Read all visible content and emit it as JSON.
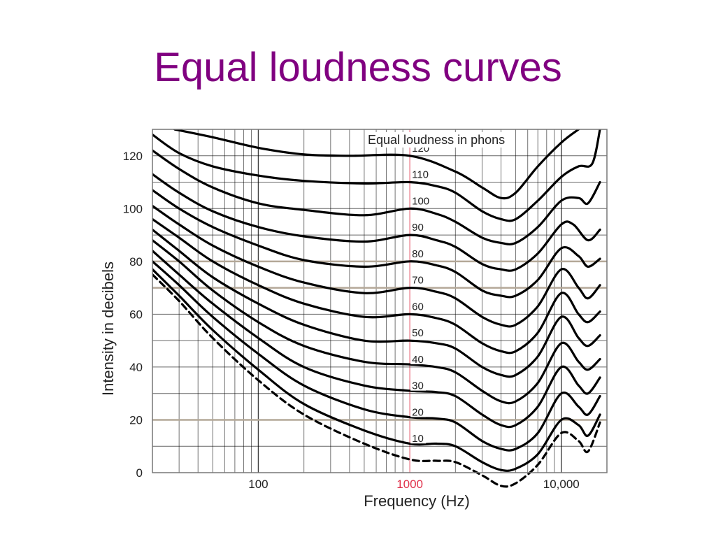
{
  "slide": {
    "title": "Equal loudness curves"
  },
  "colors": {
    "title": "#800080",
    "curve": "#000000",
    "grid": "#000000",
    "highlight_grid": "#b4a898",
    "highlight_tick": "#e0304a"
  },
  "chart_data": {
    "type": "line",
    "title": "",
    "legend_title": "Equal loudness in phons",
    "xlabel": "Frequency (Hz)",
    "ylabel": "Intensity in decibels",
    "x_scale": "log",
    "xlim": [
      20,
      20000
    ],
    "ylim": [
      0,
      130
    ],
    "x_tick_labels": [
      {
        "value": 100,
        "label": "100",
        "highlight": false
      },
      {
        "value": 1000,
        "label": "1000",
        "highlight": true
      },
      {
        "value": 10000,
        "label": "10,000",
        "highlight": false
      }
    ],
    "y_ticks": [
      0,
      20,
      40,
      60,
      80,
      100,
      120
    ],
    "highlight_y_lines": [
      20,
      70,
      80
    ],
    "grid": true,
    "series": [
      {
        "label": "120",
        "points": [
          [
            28,
            130
          ],
          [
            50,
            127
          ],
          [
            100,
            123
          ],
          [
            200,
            120.5
          ],
          [
            400,
            120
          ],
          [
            1000,
            120
          ],
          [
            2000,
            114
          ],
          [
            3000,
            108
          ],
          [
            4000,
            104
          ],
          [
            5000,
            106
          ],
          [
            7000,
            116
          ],
          [
            10000,
            125
          ],
          [
            13000,
            130
          ]
        ]
      },
      {
        "label": "110",
        "points": [
          [
            20,
            128
          ],
          [
            30,
            121
          ],
          [
            50,
            116
          ],
          [
            100,
            112.5
          ],
          [
            200,
            110.5
          ],
          [
            500,
            109.5
          ],
          [
            1000,
            110
          ],
          [
            1500,
            108.5
          ],
          [
            2000,
            106
          ],
          [
            3000,
            99
          ],
          [
            4000,
            96
          ],
          [
            5000,
            96
          ],
          [
            7000,
            103
          ],
          [
            10000,
            112
          ],
          [
            13000,
            116
          ],
          [
            16000,
            117
          ],
          [
            18000,
            130
          ]
        ]
      },
      {
        "label": "100",
        "points": [
          [
            20,
            122
          ],
          [
            30,
            115
          ],
          [
            50,
            108
          ],
          [
            100,
            102
          ],
          [
            200,
            99.5
          ],
          [
            500,
            97.5
          ],
          [
            1000,
            100
          ],
          [
            1500,
            98
          ],
          [
            2000,
            95
          ],
          [
            3000,
            89
          ],
          [
            4000,
            87
          ],
          [
            5000,
            87
          ],
          [
            7000,
            93
          ],
          [
            10000,
            103
          ],
          [
            13000,
            104
          ],
          [
            15000,
            102
          ],
          [
            18000,
            110
          ]
        ]
      },
      {
        "label": "90",
        "points": [
          [
            20,
            113
          ],
          [
            30,
            106
          ],
          [
            50,
            99
          ],
          [
            100,
            93
          ],
          [
            200,
            89.5
          ],
          [
            500,
            87.5
          ],
          [
            1000,
            90
          ],
          [
            1500,
            88
          ],
          [
            2000,
            85.5
          ],
          [
            3000,
            79
          ],
          [
            4000,
            77
          ],
          [
            5000,
            77
          ],
          [
            7000,
            83
          ],
          [
            10000,
            94
          ],
          [
            12000,
            94
          ],
          [
            15000,
            88
          ],
          [
            18000,
            92
          ]
        ]
      },
      {
        "label": "80",
        "points": [
          [
            20,
            107
          ],
          [
            30,
            100
          ],
          [
            50,
            93
          ],
          [
            100,
            86
          ],
          [
            200,
            80.5
          ],
          [
            500,
            78
          ],
          [
            1000,
            80
          ],
          [
            1500,
            78.5
          ],
          [
            2000,
            76
          ],
          [
            3000,
            69
          ],
          [
            4000,
            67
          ],
          [
            5000,
            67
          ],
          [
            7000,
            73
          ],
          [
            10000,
            85
          ],
          [
            13000,
            82
          ],
          [
            15000,
            78
          ],
          [
            18000,
            81
          ]
        ]
      },
      {
        "label": "70",
        "points": [
          [
            20,
            101
          ],
          [
            30,
            94
          ],
          [
            50,
            86
          ],
          [
            100,
            78
          ],
          [
            200,
            72
          ],
          [
            500,
            68
          ],
          [
            1000,
            70
          ],
          [
            1500,
            68.5
          ],
          [
            2000,
            66
          ],
          [
            3000,
            59
          ],
          [
            4000,
            56
          ],
          [
            5000,
            56
          ],
          [
            7000,
            63
          ],
          [
            10000,
            77
          ],
          [
            13000,
            70
          ],
          [
            15000,
            66
          ],
          [
            18000,
            71
          ]
        ]
      },
      {
        "label": "60",
        "points": [
          [
            20,
            96
          ],
          [
            30,
            89
          ],
          [
            50,
            80
          ],
          [
            100,
            71
          ],
          [
            200,
            64
          ],
          [
            500,
            59
          ],
          [
            1000,
            60
          ],
          [
            1500,
            58.5
          ],
          [
            2000,
            56
          ],
          [
            3000,
            49
          ],
          [
            4000,
            46
          ],
          [
            5000,
            46
          ],
          [
            7000,
            53
          ],
          [
            10000,
            68
          ],
          [
            13000,
            60
          ],
          [
            15000,
            57
          ],
          [
            18000,
            61
          ]
        ]
      },
      {
        "label": "50",
        "points": [
          [
            20,
            92
          ],
          [
            30,
            84
          ],
          [
            50,
            74
          ],
          [
            100,
            64
          ],
          [
            200,
            56
          ],
          [
            500,
            50
          ],
          [
            1000,
            50
          ],
          [
            1500,
            49
          ],
          [
            2000,
            47
          ],
          [
            3000,
            40
          ],
          [
            4000,
            37
          ],
          [
            5000,
            37
          ],
          [
            7000,
            44
          ],
          [
            10000,
            59
          ],
          [
            13000,
            51
          ],
          [
            15000,
            48
          ],
          [
            18000,
            52
          ]
        ]
      },
      {
        "label": "40",
        "points": [
          [
            20,
            88
          ],
          [
            30,
            80
          ],
          [
            50,
            69
          ],
          [
            100,
            57
          ],
          [
            200,
            48
          ],
          [
            500,
            42
          ],
          [
            1000,
            41
          ],
          [
            1500,
            40
          ],
          [
            2000,
            38
          ],
          [
            3000,
            31
          ],
          [
            4000,
            27
          ],
          [
            5000,
            27
          ],
          [
            7000,
            34
          ],
          [
            10000,
            49
          ],
          [
            13000,
            42
          ],
          [
            15000,
            39
          ],
          [
            18000,
            43
          ]
        ]
      },
      {
        "label": "30",
        "points": [
          [
            20,
            84
          ],
          [
            30,
            75
          ],
          [
            50,
            64
          ],
          [
            100,
            51
          ],
          [
            200,
            40
          ],
          [
            500,
            33
          ],
          [
            1000,
            31
          ],
          [
            1500,
            30.5
          ],
          [
            2000,
            29
          ],
          [
            3000,
            22
          ],
          [
            4000,
            18
          ],
          [
            5000,
            18
          ],
          [
            7000,
            25
          ],
          [
            10000,
            40
          ],
          [
            13000,
            33
          ],
          [
            15000,
            30
          ],
          [
            18000,
            36
          ]
        ]
      },
      {
        "label": "20",
        "points": [
          [
            20,
            80
          ],
          [
            30,
            71
          ],
          [
            50,
            59
          ],
          [
            100,
            45
          ],
          [
            200,
            33
          ],
          [
            500,
            24
          ],
          [
            1000,
            21
          ],
          [
            1500,
            20.5
          ],
          [
            2000,
            19
          ],
          [
            3000,
            12
          ],
          [
            4000,
            9
          ],
          [
            5000,
            9
          ],
          [
            7000,
            15
          ],
          [
            10000,
            30
          ],
          [
            13000,
            25
          ],
          [
            15000,
            22
          ],
          [
            18000,
            29
          ]
        ]
      },
      {
        "label": "10",
        "points": [
          [
            20,
            77
          ],
          [
            30,
            67
          ],
          [
            50,
            54
          ],
          [
            100,
            39
          ],
          [
            200,
            26
          ],
          [
            500,
            16
          ],
          [
            1000,
            11
          ],
          [
            1500,
            11
          ],
          [
            2000,
            10
          ],
          [
            3000,
            4
          ],
          [
            4000,
            1
          ],
          [
            5000,
            1.5
          ],
          [
            7000,
            7
          ],
          [
            10000,
            20
          ],
          [
            13000,
            18
          ],
          [
            15000,
            14
          ],
          [
            18000,
            22
          ]
        ]
      },
      {
        "label": "",
        "dashed": true,
        "points": [
          [
            20,
            75
          ],
          [
            30,
            65
          ],
          [
            50,
            51
          ],
          [
            100,
            35
          ],
          [
            200,
            22
          ],
          [
            500,
            11
          ],
          [
            1000,
            5
          ],
          [
            1500,
            4.5
          ],
          [
            2000,
            4
          ],
          [
            3000,
            -1
          ],
          [
            4000,
            -5
          ],
          [
            5000,
            -4
          ],
          [
            7000,
            3
          ],
          [
            10000,
            15
          ],
          [
            13000,
            12
          ],
          [
            15000,
            8
          ],
          [
            18000,
            19
          ]
        ]
      }
    ]
  }
}
